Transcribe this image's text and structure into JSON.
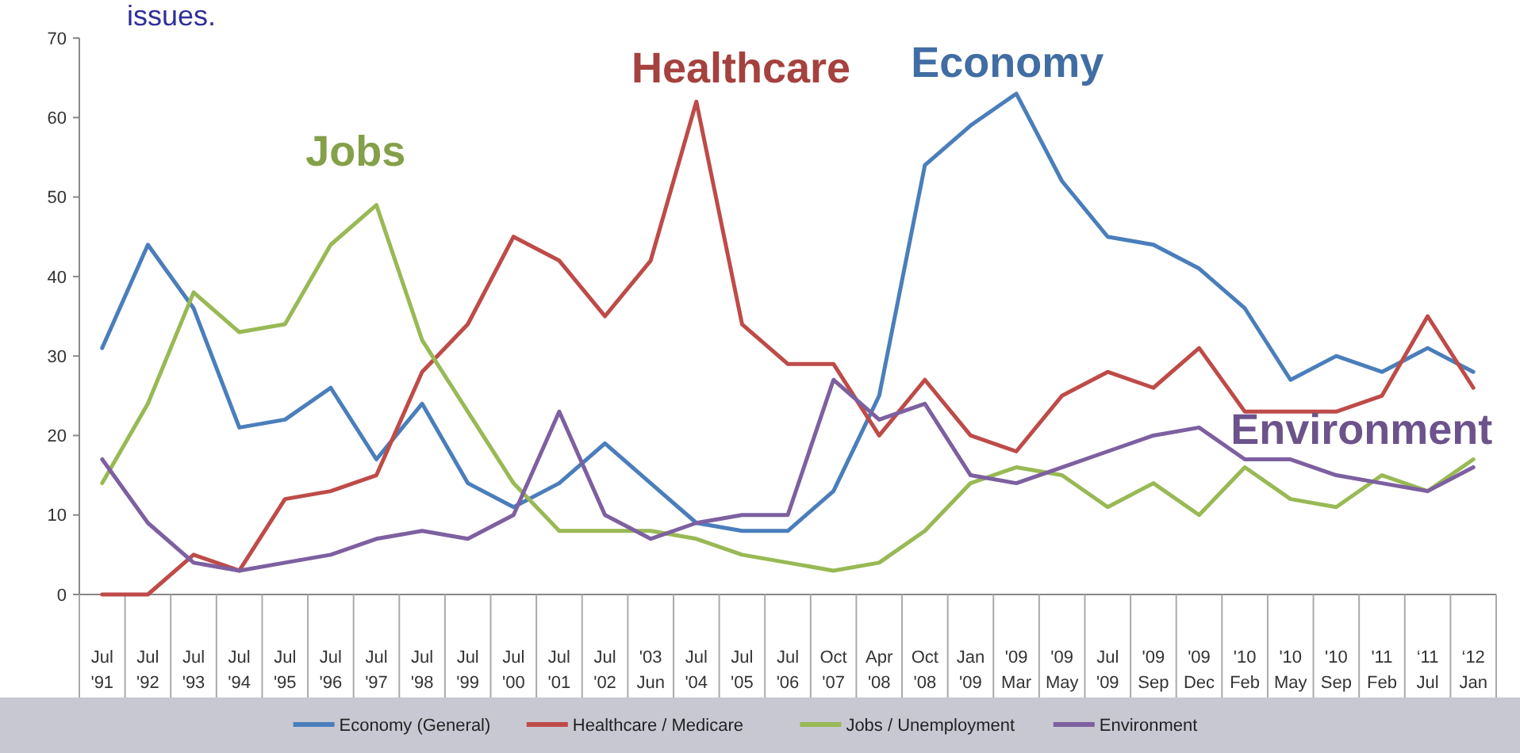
{
  "chart_data": {
    "type": "line",
    "title": "issues.",
    "categories": [
      "Jul '91",
      "Jul '92",
      "Jul '93",
      "Jul '94",
      "Jul '95",
      "Jul '96",
      "Jul '97",
      "Jul '98",
      "Jul '99",
      "Jul '00",
      "Jul '01",
      "Jul '02",
      "'03 Jun",
      "Jul '04",
      "Jul '05",
      "Jul '06",
      "Oct '07",
      "Apr '08",
      "Oct '08",
      "Jan '09",
      "'09 Mar",
      "'09 May",
      "Jul '09",
      "'09 Sep",
      "'09 Dec",
      "'10 Feb",
      "'10 May",
      "'10 Sep",
      "'11 Feb",
      "‘11 Jul",
      "‘12 Jan"
    ],
    "series": [
      {
        "name": "Economy (General)",
        "color": "#4a7ebb",
        "values": [
          31,
          44,
          36,
          21,
          22,
          26,
          17,
          24,
          14,
          11,
          14,
          19,
          14,
          9,
          8,
          8,
          13,
          25,
          54,
          59,
          63,
          52,
          45,
          44,
          41,
          36,
          27,
          30,
          28,
          31,
          28
        ]
      },
      {
        "name": "Healthcare / Medicare",
        "color": "#be4b48",
        "values": [
          0,
          0,
          5,
          3,
          12,
          13,
          15,
          28,
          34,
          45,
          42,
          35,
          42,
          62,
          34,
          29,
          29,
          20,
          27,
          20,
          18,
          25,
          28,
          26,
          31,
          23,
          23,
          23,
          25,
          35,
          26
        ]
      },
      {
        "name": "Jobs / Unemployment",
        "color": "#98b954",
        "values": [
          14,
          24,
          38,
          33,
          34,
          44,
          49,
          32,
          23,
          14,
          8,
          8,
          8,
          7,
          5,
          4,
          3,
          4,
          8,
          14,
          16,
          15,
          11,
          14,
          10,
          16,
          12,
          11,
          15,
          13,
          17
        ]
      },
      {
        "name": "Environment",
        "color": "#7d60a0",
        "values": [
          17,
          9,
          4,
          3,
          4,
          5,
          7,
          8,
          7,
          10,
          23,
          10,
          7,
          9,
          10,
          10,
          27,
          22,
          24,
          15,
          14,
          16,
          18,
          20,
          21,
          17,
          17,
          15,
          14,
          13,
          16
        ]
      }
    ],
    "annotations": [
      "Economy",
      "Healthcare",
      "Jobs",
      "Environment"
    ],
    "ylim": [
      0,
      70
    ],
    "yticks": [
      0,
      10,
      20,
      30,
      40,
      50,
      60,
      70
    ],
    "grid": false,
    "legend": "bottom",
    "line_style": "solid",
    "marker": "none"
  }
}
